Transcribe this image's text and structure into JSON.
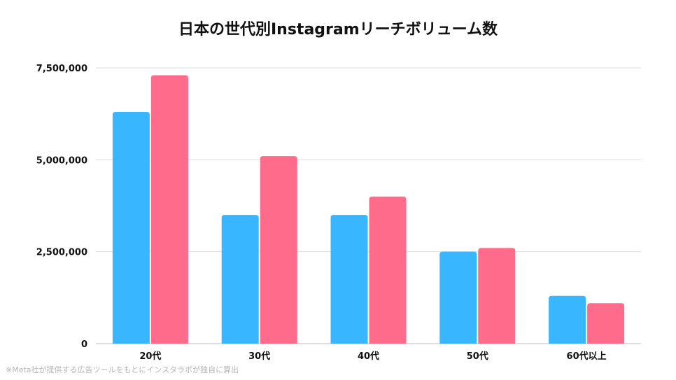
{
  "chart_data": {
    "type": "bar",
    "title": "日本の世代別Instagramリーチボリューム数",
    "xlabel": "",
    "ylabel": "",
    "categories": [
      "20代",
      "30代",
      "40代",
      "50代",
      "60代以上"
    ],
    "series": [
      {
        "color": "#38b6ff",
        "values": [
          6300000,
          3500000,
          3500000,
          2500000,
          1300000
        ]
      },
      {
        "color": "#ff6b8b",
        "values": [
          7300000,
          5100000,
          4000000,
          2600000,
          1100000
        ]
      }
    ],
    "ylim": [
      0,
      7500000
    ],
    "yticks": [
      {
        "value": 0,
        "label": "0"
      },
      {
        "value": 2500000,
        "label": "2,500,000"
      },
      {
        "value": 5000000,
        "label": "5,000,000"
      },
      {
        "value": 7500000,
        "label": "7,500,000"
      }
    ],
    "grid": true,
    "legend": "none"
  },
  "footnote": "※Meta社が提供する広告ツールをもとにインスタラボが独自に算出"
}
